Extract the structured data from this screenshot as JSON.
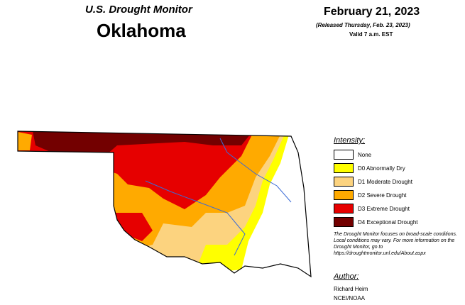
{
  "header": {
    "title": "U.S. Drought Monitor",
    "state": "Oklahoma",
    "date": "February 21, 2023",
    "released": "(Released Thursday, Feb. 23, 2023)",
    "valid": "Valid 7 a.m. EST"
  },
  "legend": {
    "title": "Intensity:",
    "items": [
      {
        "label": "None",
        "color": "#ffffff"
      },
      {
        "label": "D0 Abnormally Dry",
        "color": "#ffff00"
      },
      {
        "label": "D1 Moderate Drought",
        "color": "#fcd37f"
      },
      {
        "label": "D2 Severe Drought",
        "color": "#ffaa00"
      },
      {
        "label": "D3 Extreme Drought",
        "color": "#e60000"
      },
      {
        "label": "D4 Exceptional Drought",
        "color": "#730000"
      }
    ]
  },
  "note": "The Drought Monitor focuses on broad-scale conditions. Local conditions may vary. For more information on the Drought Monitor, go to https://droughtmonitor.unl.edu/About.aspx",
  "author": {
    "label": "Author:",
    "name": "Richard Heim",
    "org": "NCEI/NOAA"
  }
}
